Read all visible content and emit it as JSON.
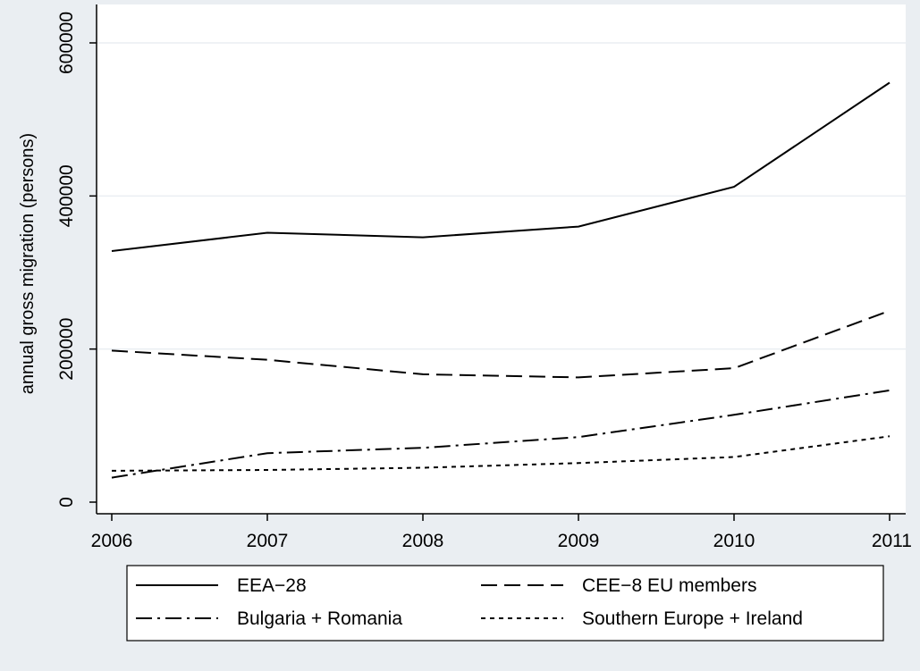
{
  "chart_data": {
    "type": "line",
    "title": "",
    "xlabel": "",
    "ylabel": "annual gross migration (persons)",
    "x": [
      2006,
      2007,
      2008,
      2009,
      2010,
      2011
    ],
    "xticks": [
      "2006",
      "2007",
      "2008",
      "2009",
      "2010",
      "2011"
    ],
    "yticks": [
      "0",
      "200000",
      "400000",
      "600000"
    ],
    "ylim": [
      0,
      600000
    ],
    "grid": true,
    "legend_position": "bottom",
    "series": [
      {
        "name": "EEA−28",
        "style": "solid",
        "values": [
          328000,
          352000,
          346000,
          360000,
          412000,
          548000
        ]
      },
      {
        "name": "CEE−8 EU members",
        "style": "dashed",
        "values": [
          198000,
          186000,
          167000,
          163000,
          175000,
          250000
        ]
      },
      {
        "name": "Bulgaria + Romania",
        "style": "dashdot",
        "values": [
          32000,
          64000,
          71000,
          85000,
          114000,
          146000
        ]
      },
      {
        "name": "Southern Europe + Ireland",
        "style": "dotted",
        "values": [
          41000,
          42000,
          45000,
          51000,
          59000,
          86000
        ]
      }
    ],
    "colors": {
      "background": "#eaeef2",
      "plot": "#ffffff",
      "line": "#000000",
      "grid": "#eaeef2"
    }
  }
}
